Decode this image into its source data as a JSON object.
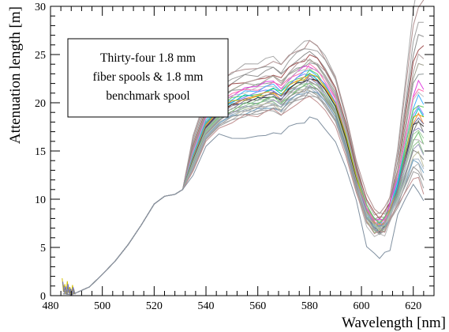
{
  "chart_data": {
    "type": "line",
    "title": "",
    "xlabel": "Wavelength [nm]",
    "ylabel": "Attenuation length [m]",
    "xlim": [
      480,
      628
    ],
    "ylim": [
      0,
      30
    ],
    "x_ticks": [
      480,
      500,
      520,
      540,
      560,
      580,
      600,
      620
    ],
    "y_ticks": [
      0,
      5,
      10,
      15,
      20,
      25,
      30
    ],
    "grid": false,
    "legend_box": {
      "placement": "top-left",
      "lines": [
        "Thirty-four 1.8 mm",
        "fiber spools & 1.8 mm",
        "benchmark spool"
      ]
    },
    "base_curve": {
      "x": [
        485,
        488,
        490,
        495,
        500,
        505,
        510,
        515,
        520,
        524,
        528,
        531,
        535,
        540,
        545,
        550,
        555,
        560,
        563,
        566,
        569,
        572,
        575,
        578,
        580,
        583,
        586,
        590,
        594,
        598,
        602,
        605,
        607,
        609,
        611,
        614,
        617,
        620,
        622,
        624
      ],
      "y": [
        0.2,
        0.1,
        0.3,
        0.9,
        2.2,
        3.6,
        5.3,
        7.3,
        9.5,
        10.3,
        10.5,
        11.0,
        14.5,
        18.0,
        19.5,
        20.3,
        20.8,
        21.0,
        21.3,
        21.5,
        21.0,
        21.9,
        22.5,
        22.9,
        23.2,
        22.8,
        21.8,
        20.0,
        16.5,
        12.2,
        8.7,
        7.5,
        7.3,
        7.6,
        8.8,
        11.5,
        15.5,
        19.5,
        20.5,
        20.0
      ]
    },
    "series": [
      {
        "color": "#a8a8a8",
        "scale": 1.145,
        "dip": 1.0,
        "tail": 30.0
      },
      {
        "color": "#b09090",
        "scale": 1.13,
        "dip": 1.05,
        "tail": 27.5
      },
      {
        "color": "#a0a0a0",
        "scale": 1.11,
        "dip": 0.95,
        "tail": 26.0
      },
      {
        "color": "#909090",
        "scale": 1.09,
        "dip": 1.0,
        "tail": 25.0
      },
      {
        "color": "#a05050",
        "scale": 1.07,
        "dip": 1.05,
        "tail": 24.2
      },
      {
        "color": "#b0a0a0",
        "scale": 1.06,
        "dip": 1.0,
        "tail": 23.5
      },
      {
        "color": "#a0a090",
        "scale": 1.05,
        "dip": 0.92,
        "tail": 22.8
      },
      {
        "color": "#909898",
        "scale": 1.04,
        "dip": 1.0,
        "tail": 22.0
      },
      {
        "color": "#e040e0",
        "scale": 1.03,
        "dip": 1.03,
        "tail": 21.0
      },
      {
        "color": "#ff6fb0",
        "scale": 1.025,
        "dip": 1.0,
        "tail": 20.5
      },
      {
        "color": "#c0c0c0",
        "scale": 1.02,
        "dip": 0.97,
        "tail": 20.2
      },
      {
        "color": "#40b0ff",
        "scale": 1.01,
        "dip": 1.0,
        "tail": 19.8
      },
      {
        "color": "#60d060",
        "scale": 1.0,
        "dip": 1.05,
        "tail": 19.3
      },
      {
        "color": "#8080ff",
        "scale": 0.995,
        "dip": 1.0,
        "tail": 19.0
      },
      {
        "color": "#00c0c0",
        "scale": 0.99,
        "dip": 0.98,
        "tail": 18.8
      },
      {
        "color": "#d0b000",
        "scale": 0.985,
        "dip": 1.0,
        "tail": 18.6
      },
      {
        "color": "#ff9040",
        "scale": 0.98,
        "dip": 1.02,
        "tail": 18.4
      },
      {
        "color": "#7070a0",
        "scale": 0.975,
        "dip": 1.0,
        "tail": 18.2
      },
      {
        "color": "#303030",
        "scale": 0.97,
        "dip": 0.96,
        "tail": 18.0
      },
      {
        "color": "#808080",
        "scale": 0.965,
        "dip": 1.0,
        "tail": 17.8
      },
      {
        "color": "#9090c0",
        "scale": 0.96,
        "dip": 1.04,
        "tail": 17.5
      },
      {
        "color": "#a0d0a0",
        "scale": 0.955,
        "dip": 1.0,
        "tail": 17.2
      },
      {
        "color": "#70c070",
        "scale": 0.95,
        "dip": 0.95,
        "tail": 16.8
      },
      {
        "color": "#b0b0b0",
        "scale": 0.945,
        "dip": 1.0,
        "tail": 16.5
      },
      {
        "color": "#90c090",
        "scale": 0.94,
        "dip": 1.03,
        "tail": 16.0
      },
      {
        "color": "#a0a0c0",
        "scale": 0.935,
        "dip": 1.0,
        "tail": 15.8
      },
      {
        "color": "#888888",
        "scale": 0.93,
        "dip": 0.97,
        "tail": 15.2
      },
      {
        "color": "#c0c0a0",
        "scale": 0.925,
        "dip": 1.0,
        "tail": 15.0
      },
      {
        "color": "#a8b8c8",
        "scale": 0.92,
        "dip": 1.05,
        "tail": 14.5
      },
      {
        "color": "#70a0c0",
        "scale": 0.915,
        "dip": 1.0,
        "tail": 14.2
      },
      {
        "color": "#b8b8b8",
        "scale": 0.91,
        "dip": 0.93,
        "tail": 13.8
      },
      {
        "color": "#9a9a9a",
        "scale": 0.905,
        "dip": 1.0,
        "tail": 13.5
      },
      {
        "color": "#a0a0a0",
        "scale": 0.9,
        "dip": 0.98,
        "tail": 13.0
      },
      {
        "color": "#c09090",
        "scale": 0.89,
        "dip": 1.0,
        "tail": 12.6
      },
      {
        "color": "#8090a0",
        "scale": 0.86,
        "dip": 0.65,
        "tail": 12.0,
        "outlier": true
      }
    ],
    "noise_blip": {
      "x": [
        484.5,
        485,
        485.5,
        486,
        486.5,
        487,
        487.5,
        488,
        488.5,
        489
      ],
      "y": [
        1.8,
        0.4,
        1.2,
        0.2,
        1.5,
        0.3,
        0.9,
        0.1,
        1.1,
        0.2
      ]
    }
  }
}
